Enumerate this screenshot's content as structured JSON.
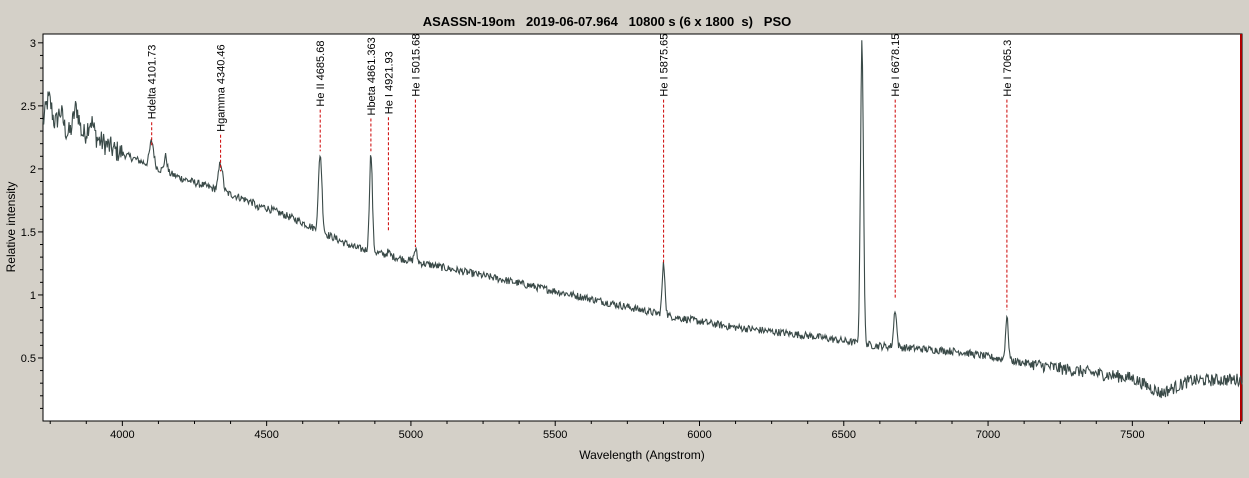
{
  "chart_data": {
    "type": "line",
    "title": "ASASSN-19om   2019-06-07.964   10800 s (6 x 1800  s)   PSO",
    "xlabel": "Wavelength (Angstrom)",
    "ylabel": "Relative intensity",
    "xlim": [
      3725,
      7880
    ],
    "ylim": [
      0.0,
      3.07
    ],
    "xticks": [
      4000,
      4500,
      5000,
      5500,
      6000,
      6500,
      7000,
      7500
    ],
    "yticks": [
      0.5,
      1,
      1.5,
      2,
      2.5,
      3
    ],
    "xtick_labels": [
      "4000",
      "4500",
      "5000",
      "5500",
      "6000",
      "6500",
      "7000",
      "7500"
    ],
    "ytick_labels": [
      "0.5",
      "1",
      "1.5",
      "2",
      "2.5",
      "3"
    ],
    "grid": false,
    "colors": {
      "plot_bg": "#ffffff",
      "frame_bg": "#d4d0c8",
      "line": "#3a4a48",
      "marker": "#cc0000",
      "right_edge": "#b00000"
    },
    "continuum": [
      {
        "x": 3725,
        "y": 2.3
      },
      {
        "x": 3900,
        "y": 2.25
      },
      {
        "x": 4000,
        "y": 2.12
      },
      {
        "x": 4200,
        "y": 1.93
      },
      {
        "x": 4400,
        "y": 1.78
      },
      {
        "x": 4600,
        "y": 1.6
      },
      {
        "x": 4800,
        "y": 1.38
      },
      {
        "x": 5000,
        "y": 1.27
      },
      {
        "x": 5300,
        "y": 1.13
      },
      {
        "x": 5600,
        "y": 0.98
      },
      {
        "x": 5900,
        "y": 0.83
      },
      {
        "x": 6100,
        "y": 0.75
      },
      {
        "x": 6400,
        "y": 0.67
      },
      {
        "x": 6600,
        "y": 0.6
      },
      {
        "x": 6900,
        "y": 0.55
      },
      {
        "x": 7100,
        "y": 0.47
      },
      {
        "x": 7300,
        "y": 0.4
      },
      {
        "x": 7500,
        "y": 0.34
      },
      {
        "x": 7600,
        "y": 0.22
      },
      {
        "x": 7700,
        "y": 0.32
      },
      {
        "x": 7880,
        "y": 0.33
      }
    ],
    "peaks": [
      {
        "x": 3745,
        "y": 2.55,
        "w": 12
      },
      {
        "x": 3785,
        "y": 2.45,
        "w": 10
      },
      {
        "x": 3840,
        "y": 2.48,
        "w": 10
      },
      {
        "x": 3890,
        "y": 2.38,
        "w": 10
      },
      {
        "x": 3970,
        "y": 2.15,
        "w": 10
      },
      {
        "x": 4101.73,
        "y": 2.22,
        "w": 7
      },
      {
        "x": 4150,
        "y": 2.1,
        "w": 5
      },
      {
        "x": 4340.46,
        "y": 2.05,
        "w": 7
      },
      {
        "x": 4470,
        "y": 1.68,
        "w": 6
      },
      {
        "x": 4685.68,
        "y": 2.12,
        "w": 6
      },
      {
        "x": 4861.363,
        "y": 2.12,
        "w": 5
      },
      {
        "x": 4921.93,
        "y": 1.34,
        "w": 5
      },
      {
        "x": 5015.68,
        "y": 1.36,
        "w": 5
      },
      {
        "x": 5875.65,
        "y": 1.24,
        "w": 5
      },
      {
        "x": 6563,
        "y": 3.03,
        "w": 5
      },
      {
        "x": 6678.15,
        "y": 0.89,
        "w": 5
      },
      {
        "x": 7065.3,
        "y": 0.82,
        "w": 5
      }
    ],
    "lines": [
      {
        "label": "Hdelta 4101.73",
        "wavelength": 4101.73,
        "y_from": 2.37,
        "y_to": 2.18
      },
      {
        "label": "Hgamma 4340.46",
        "wavelength": 4340.46,
        "y_from": 2.27,
        "y_to": 1.98
      },
      {
        "label": "He II 4685.68",
        "wavelength": 4685.68,
        "y_from": 2.47,
        "y_to": 2.14
      },
      {
        "label": "Hbeta 4861.363",
        "wavelength": 4861.363,
        "y_from": 2.4,
        "y_to": 2.14
      },
      {
        "label": "He I 4921.93",
        "wavelength": 4921.93,
        "y_from": 2.41,
        "y_to": 1.5
      },
      {
        "label": "He I 5015.68",
        "wavelength": 5015.68,
        "y_from": 2.55,
        "y_to": 1.38
      },
      {
        "label": "He I 5875.65",
        "wavelength": 5875.65,
        "y_from": 2.55,
        "y_to": 1.25
      },
      {
        "label": "He I 6678.15",
        "wavelength": 6678.15,
        "y_from": 2.55,
        "y_to": 0.97
      },
      {
        "label": "He I 7065.3",
        "wavelength": 7065.3,
        "y_from": 2.55,
        "y_to": 0.88
      }
    ]
  }
}
